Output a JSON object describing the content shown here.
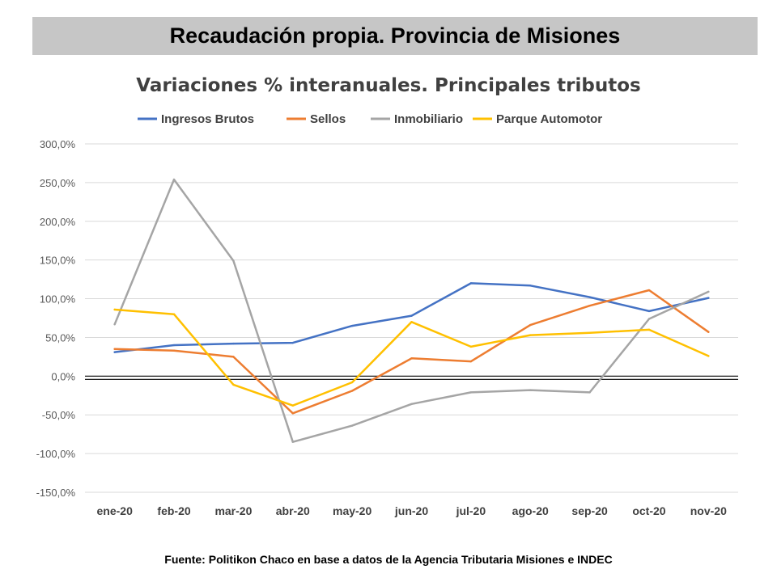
{
  "header": {
    "title": "Recaudación propia. Provincia de Misiones"
  },
  "footer": {
    "source": "Fuente: Politikon Chaco en base a datos de la Agencia Tributaria Misiones e INDEC"
  },
  "chart_data": {
    "type": "line",
    "title": "Variaciones % interanuales. Principales tributos",
    "categories": [
      "ene-20",
      "feb-20",
      "mar-20",
      "abr-20",
      "may-20",
      "jun-20",
      "jul-20",
      "ago-20",
      "sep-20",
      "oct-20",
      "nov-20"
    ],
    "yticks": [
      "-150,0%",
      "-100,0%",
      "-50,0%",
      "0,0%",
      "50,0%",
      "100,0%",
      "150,0%",
      "200,0%",
      "250,0%",
      "300,0%"
    ],
    "ylim": [
      -150,
      300
    ],
    "grid": true,
    "legend_position": "top",
    "series": [
      {
        "name": "Ingresos Brutos",
        "color": "#4472c4",
        "values": [
          31,
          40,
          42,
          43,
          65,
          78,
          120,
          117,
          102,
          84,
          101
        ]
      },
      {
        "name": "Sellos",
        "color": "#ed7d31",
        "values": [
          35,
          33,
          25,
          -48,
          -19,
          23,
          19,
          66,
          91,
          111,
          57
        ]
      },
      {
        "name": "Inmobiliario",
        "color": "#a5a5a5",
        "values": [
          67,
          254,
          149,
          -85,
          -64,
          -36,
          -21,
          -18,
          -21,
          74,
          109
        ]
      },
      {
        "name": "Parque Automotor",
        "color": "#ffc000",
        "values": [
          86,
          80,
          -11,
          -38,
          -8,
          70,
          38,
          53,
          56,
          60,
          26
        ]
      }
    ]
  }
}
